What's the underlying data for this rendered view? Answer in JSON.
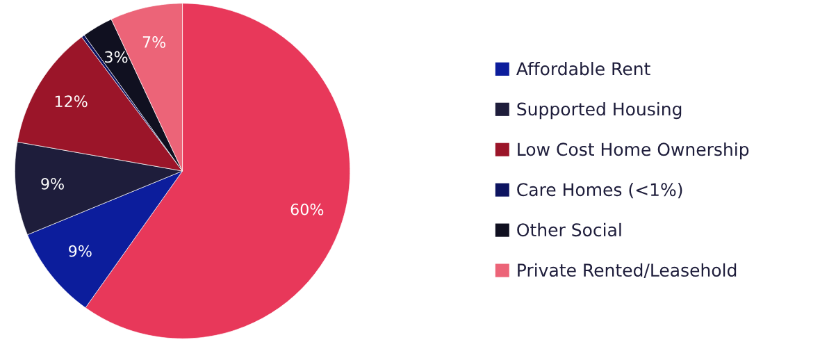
{
  "chart_data": {
    "type": "pie",
    "categories": [
      null,
      "Affordable Rent",
      "Supported Housing",
      "Low Cost Home Ownership",
      "Care Homes (<1%)",
      "Other Social",
      "Private Rented/Leasehold"
    ],
    "values": [
      60,
      9,
      9,
      12,
      0.3,
      3,
      7
    ],
    "colors": [
      "#e8385a",
      "#0c1d9c",
      "#1e1d3b",
      "#9b1529",
      "#0d1460",
      "#101020",
      "#ec6478"
    ],
    "value_labels": [
      "60%",
      "9%",
      "9%",
      "12%",
      null,
      "3%",
      "7%"
    ],
    "legend": "right"
  }
}
